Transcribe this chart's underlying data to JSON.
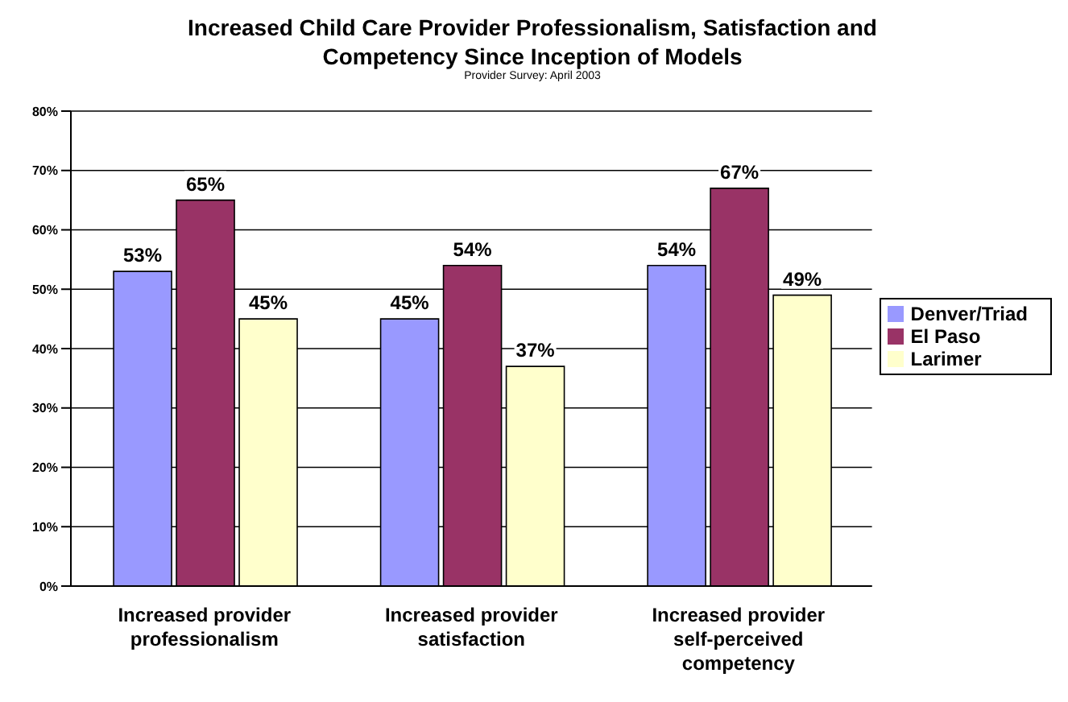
{
  "chart_data": {
    "type": "bar",
    "title": "Increased Child Care Provider Professionalism, Satisfaction and Competency Since Inception of Models",
    "subtitle": "Provider Survey: April 2003",
    "categories": [
      "Increased provider professionalism",
      "Increased provider satisfaction",
      "Increased provider self-perceived competency"
    ],
    "series": [
      {
        "name": "Denver/Triad",
        "color": "#9999ff",
        "values": [
          53,
          45,
          54
        ],
        "value_labels": [
          "53%",
          "45%",
          "54%"
        ]
      },
      {
        "name": "El Paso",
        "color": "#993366",
        "values": [
          65,
          54,
          67
        ],
        "value_labels": [
          "65%",
          "54%",
          "67%"
        ]
      },
      {
        "name": "Larimer",
        "color": "#ffffcc",
        "values": [
          45,
          37,
          49
        ],
        "value_labels": [
          "45%",
          "37%",
          "49%"
        ]
      }
    ],
    "ylim": [
      0,
      80
    ],
    "yticks": [
      {
        "value": 0,
        "label": "0%"
      },
      {
        "value": 10,
        "label": "10%"
      },
      {
        "value": 20,
        "label": "20%"
      },
      {
        "value": 30,
        "label": "30%"
      },
      {
        "value": 40,
        "label": "40%"
      },
      {
        "value": 50,
        "label": "50%"
      },
      {
        "value": 60,
        "label": "60%"
      },
      {
        "value": 70,
        "label": "70%"
      },
      {
        "value": 80,
        "label": "80%"
      }
    ],
    "grid": "y",
    "legend": "right"
  }
}
